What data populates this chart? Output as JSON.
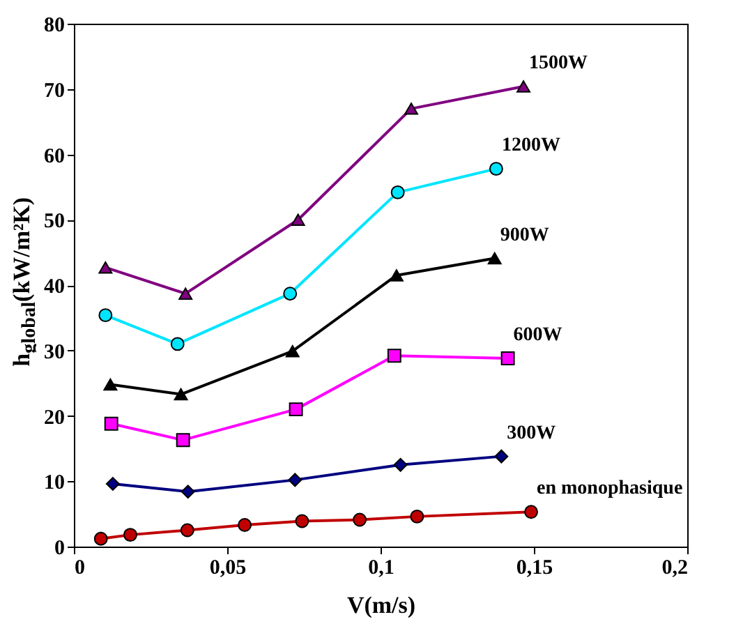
{
  "chart_data": {
    "type": "line",
    "xlabel": "V(m/s)",
    "ylabel": "h$_{global}$(kW/m²K)",
    "xlim": [
      0,
      0.2
    ],
    "xticks": [
      0,
      {
        "value": 0.05,
        "label": "0,05"
      },
      {
        "value": 0.1,
        "label": "0,1"
      },
      {
        "value": 0.15,
        "label": "0,15"
      },
      {
        "value": 0.2,
        "label": "0,2"
      }
    ],
    "ylim": [
      0,
      80
    ],
    "yticks": [
      0,
      10,
      20,
      30,
      40,
      50,
      60,
      70,
      80
    ],
    "grid": false,
    "line_style": "solid",
    "series": [
      {
        "name": "1500W",
        "color": "#800080",
        "marker": "triangle",
        "x": [
          0.0103,
          0.0364,
          0.0731,
          0.11,
          0.1466
        ],
        "values": [
          42.7,
          38.7,
          50.0,
          67.0,
          70.4
        ]
      },
      {
        "name": "1200W",
        "color": "#00e5ff",
        "marker": "circle",
        "x": [
          0.0103,
          0.0338,
          0.0705,
          0.1056,
          0.1377
        ],
        "values": [
          35.4,
          31.0,
          38.7,
          54.2,
          57.8
        ]
      },
      {
        "name": "900W",
        "color": "#000000",
        "marker": "triangle",
        "x": [
          0.0119,
          0.0349,
          0.0713,
          0.1052,
          0.1372
        ],
        "values": [
          24.8,
          23.3,
          29.9,
          41.5,
          44.1
        ]
      },
      {
        "name": "600W",
        "color": "#ff00ff",
        "marker": "square",
        "x": [
          0.0122,
          0.0356,
          0.0724,
          0.1045,
          0.1415
        ],
        "values": [
          18.8,
          16.3,
          21.0,
          29.2,
          28.8
        ]
      },
      {
        "name": "300W",
        "color": "#000080",
        "marker": "diamond",
        "x": [
          0.0127,
          0.0372,
          0.0721,
          0.1065,
          0.1394
        ],
        "values": [
          9.6,
          8.4,
          10.2,
          12.5,
          13.8
        ]
      },
      {
        "name": "en monophasique",
        "color": "#c00000",
        "marker": "circle",
        "x": [
          0.0088,
          0.0184,
          0.037,
          0.0557,
          0.0744,
          0.0932,
          0.1119,
          0.1491
        ],
        "values": [
          1.2,
          1.8,
          2.5,
          3.3,
          3.9,
          4.1,
          4.6,
          5.3
        ]
      }
    ]
  }
}
